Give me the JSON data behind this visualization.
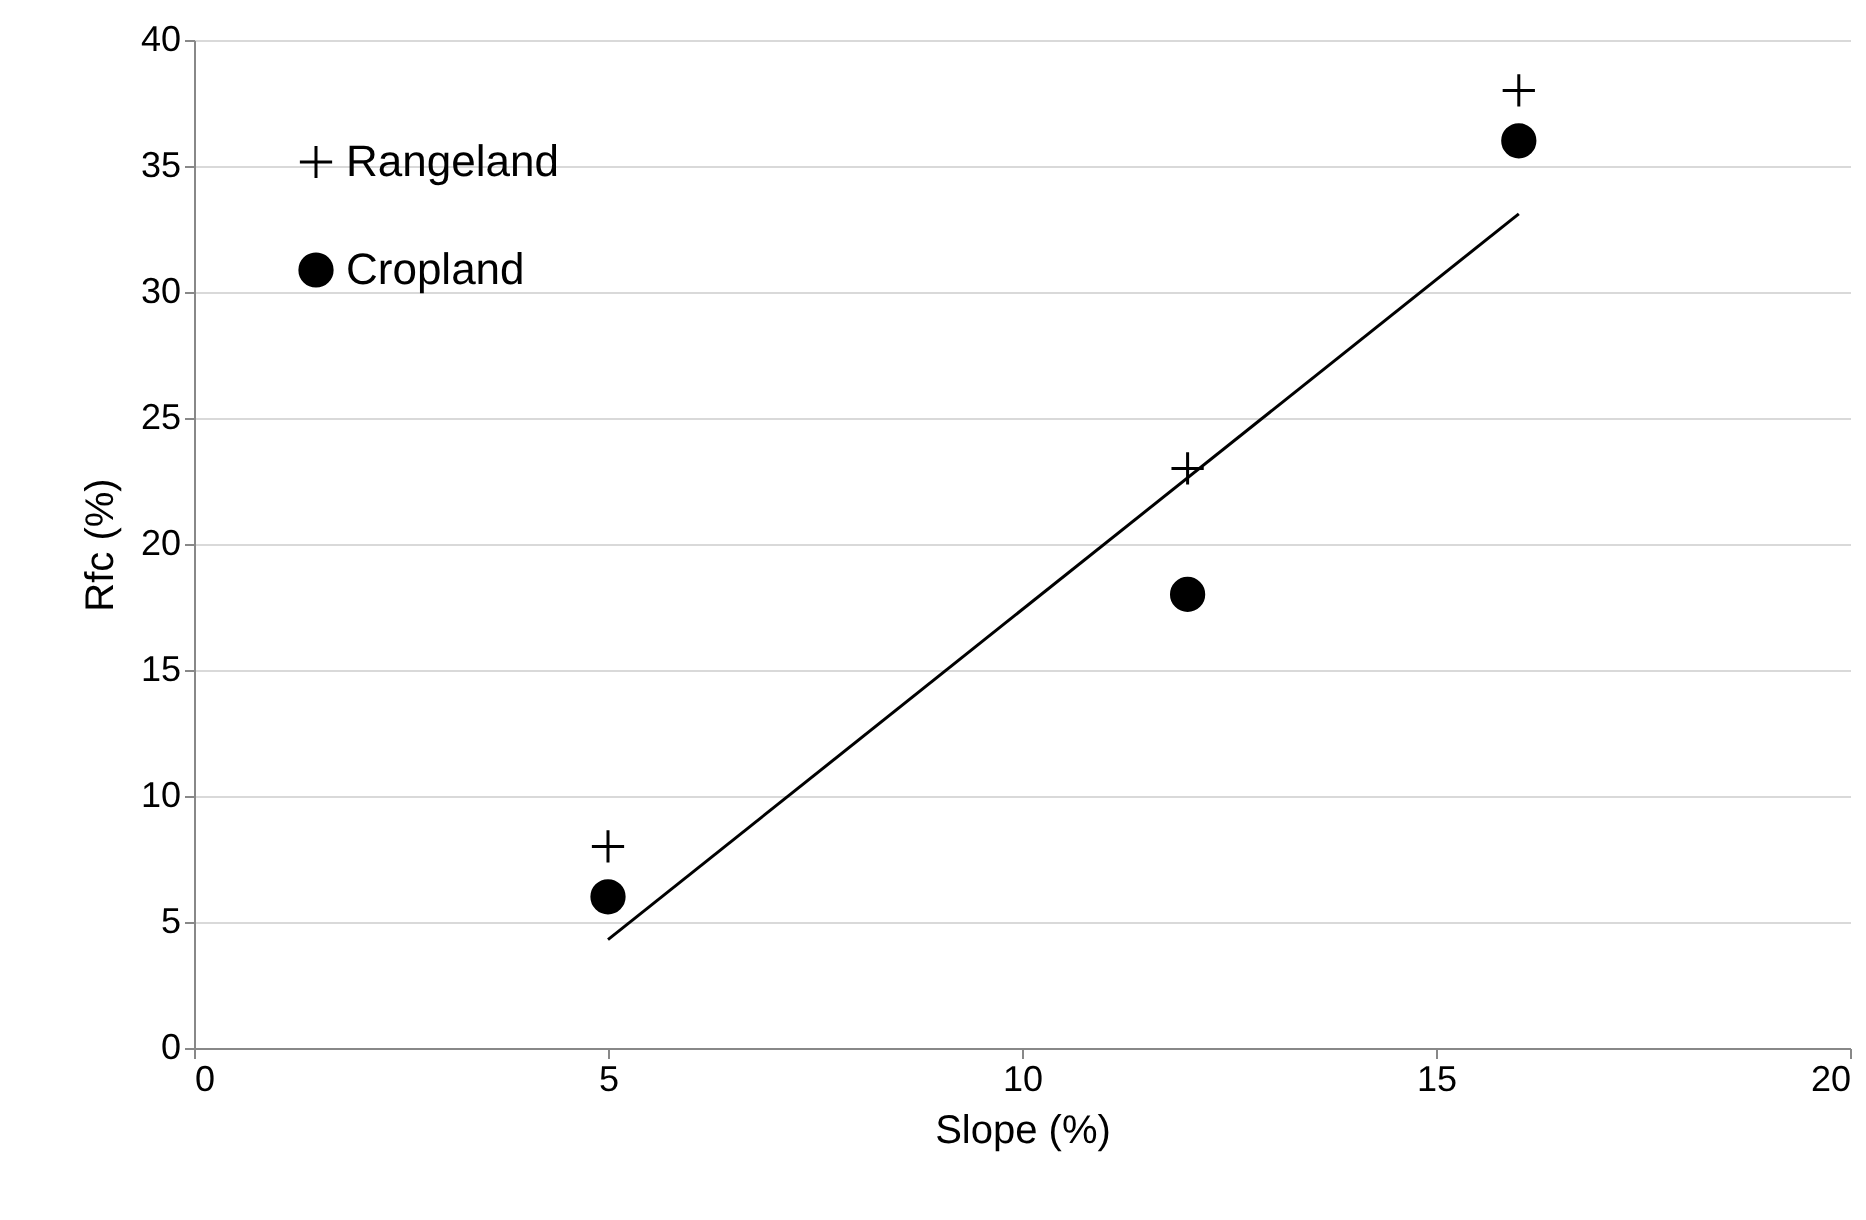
{
  "chart_data": {
    "type": "scatter",
    "xlabel": "Slope (%)",
    "ylabel": "Rfc (%)",
    "xlim": [
      0,
      20
    ],
    "xticks": [
      0,
      5,
      10,
      15,
      20
    ],
    "ylim": [
      0,
      40
    ],
    "yticks": [
      0,
      5,
      10,
      15,
      20,
      25,
      30,
      35,
      40
    ],
    "grid": "y",
    "legend": "top left",
    "series": [
      {
        "name": "Rangeland",
        "color": "#000000",
        "marker": "cross",
        "x": [
          5,
          12,
          16
        ],
        "values": [
          8,
          23,
          38
        ]
      },
      {
        "name": "Cropland",
        "color": "#000000",
        "marker": "circle",
        "x": [
          5,
          12,
          16
        ],
        "values": [
          6,
          18,
          36
        ]
      },
      {
        "type": "line",
        "color": "#000000",
        "marker": "none",
        "x": [
          5,
          16
        ],
        "values": [
          4.3,
          33.1
        ]
      }
    ]
  }
}
